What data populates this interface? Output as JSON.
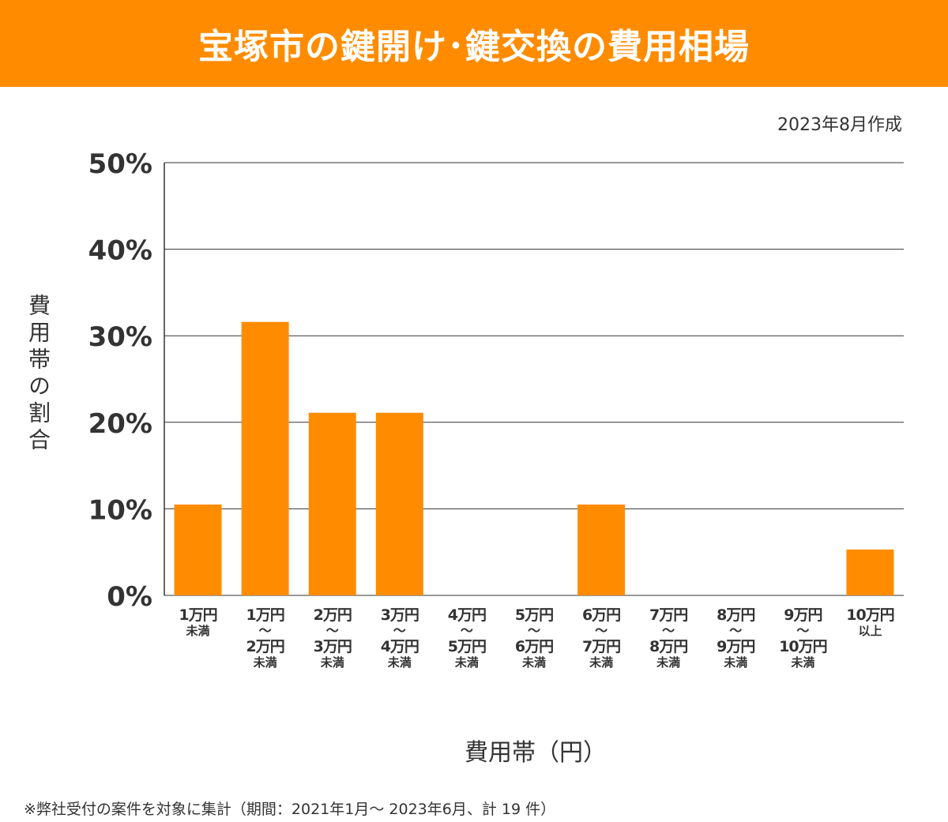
{
  "header": {
    "title": "宝塚市の鍵開け･鍵交換の費用相場"
  },
  "created": "2023年8月作成",
  "footnote": "※弊社受付の案件を対象に集計（期間：2021年1月～ 2023年6月、計 19 件）",
  "colors": {
    "bar": "#ff8c00",
    "header": "#ff8c00"
  },
  "chart_data": {
    "type": "bar",
    "title": "宝塚市の鍵開け･鍵交換の費用相場",
    "xlabel": "費用帯（円）",
    "ylabel": "費用帯の割合",
    "ylim": [
      0,
      50
    ],
    "yticks": [
      "0%",
      "10%",
      "20%",
      "30%",
      "40%",
      "50%"
    ],
    "grid": true,
    "categories": [
      {
        "from": "1万円",
        "to": "",
        "suffix": "未満"
      },
      {
        "from": "1万円",
        "to": "2万円",
        "suffix": "未満"
      },
      {
        "from": "2万円",
        "to": "3万円",
        "suffix": "未満"
      },
      {
        "from": "3万円",
        "to": "4万円",
        "suffix": "未満"
      },
      {
        "from": "4万円",
        "to": "5万円",
        "suffix": "未満"
      },
      {
        "from": "5万円",
        "to": "6万円",
        "suffix": "未満"
      },
      {
        "from": "6万円",
        "to": "7万円",
        "suffix": "未満"
      },
      {
        "from": "7万円",
        "to": "8万円",
        "suffix": "未満"
      },
      {
        "from": "8万円",
        "to": "9万円",
        "suffix": "未満"
      },
      {
        "from": "9万円",
        "to": "10万円",
        "suffix": "未満"
      },
      {
        "from": "10万円",
        "to": "",
        "suffix": "以上"
      }
    ],
    "range_mark": "〜",
    "values": [
      10.5,
      31.6,
      21.1,
      21.1,
      0,
      0,
      10.5,
      0,
      0,
      0,
      5.3
    ]
  }
}
